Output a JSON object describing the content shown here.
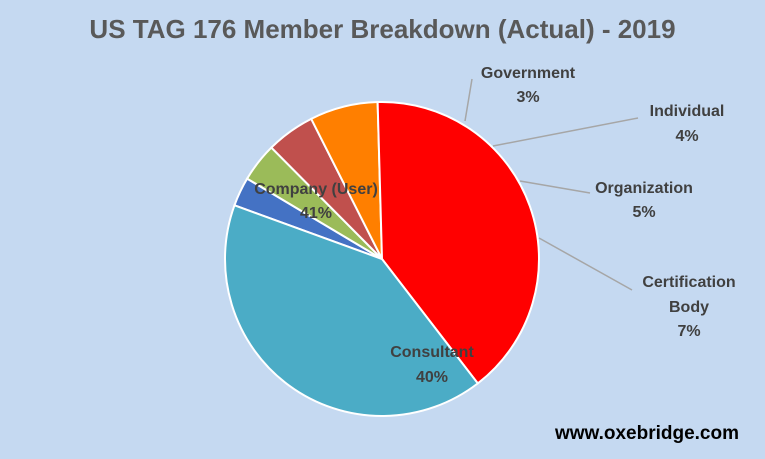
{
  "chart_data": {
    "type": "pie",
    "title": "US TAG 176 Member Breakdown (Actual) - 2019",
    "slices": [
      {
        "label": "Government",
        "value": 3,
        "value_label": "3%",
        "color": "#4472c4"
      },
      {
        "label": "Individual",
        "value": 4,
        "value_label": "4%",
        "color": "#9bbb59"
      },
      {
        "label": "Organization",
        "value": 5,
        "value_label": "5%",
        "color": "#c0504d"
      },
      {
        "label": "Certification Body",
        "value": 7,
        "value_label": "7%",
        "color": "#ff7f00"
      },
      {
        "label": "Consultant",
        "value": 40,
        "value_label": "40%",
        "color": "#ff0000"
      },
      {
        "label": "Company (User)",
        "value": 41,
        "value_label": "41%",
        "color": "#4bacc6"
      }
    ]
  },
  "watermark": "www.oxebridge.com"
}
